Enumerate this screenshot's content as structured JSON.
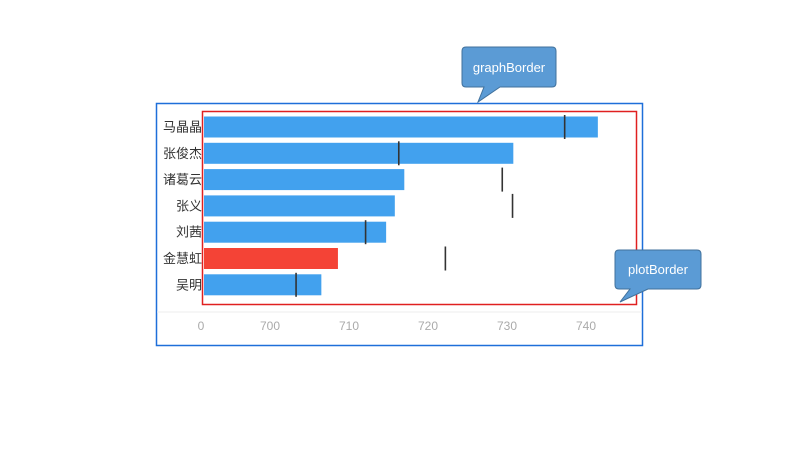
{
  "chart_data": {
    "type": "bar",
    "orientation": "horizontal",
    "categories": [
      "马晶晶",
      "张俊杰",
      "诸葛云",
      "张义",
      "刘茜",
      "金慧虹",
      "吴明"
    ],
    "values": [
      741.5,
      730.8,
      717.0,
      715.8,
      714.7,
      708.6,
      706.5
    ],
    "targets": [
      737.3,
      716.3,
      729.4,
      730.7,
      712.1,
      722.2,
      703.3
    ],
    "highlight_index": 5,
    "x_ticks": [
      "0",
      "700",
      "710",
      "720",
      "730",
      "740"
    ],
    "xlim": [
      695,
      746
    ],
    "grid": false,
    "title": "",
    "xlabel": "",
    "ylabel": "",
    "colors": {
      "bar": "#42a1ee",
      "bar_highlight": "#f44336",
      "target_marker": "#333333",
      "graph_border": "#1e6fd9",
      "plot_border": "#e02020",
      "callout_fill": "#5b9bd5",
      "callout_stroke": "#41719c"
    }
  },
  "annotations": {
    "graph_border_label": "graphBorder",
    "plot_border_label": "plotBorder"
  }
}
